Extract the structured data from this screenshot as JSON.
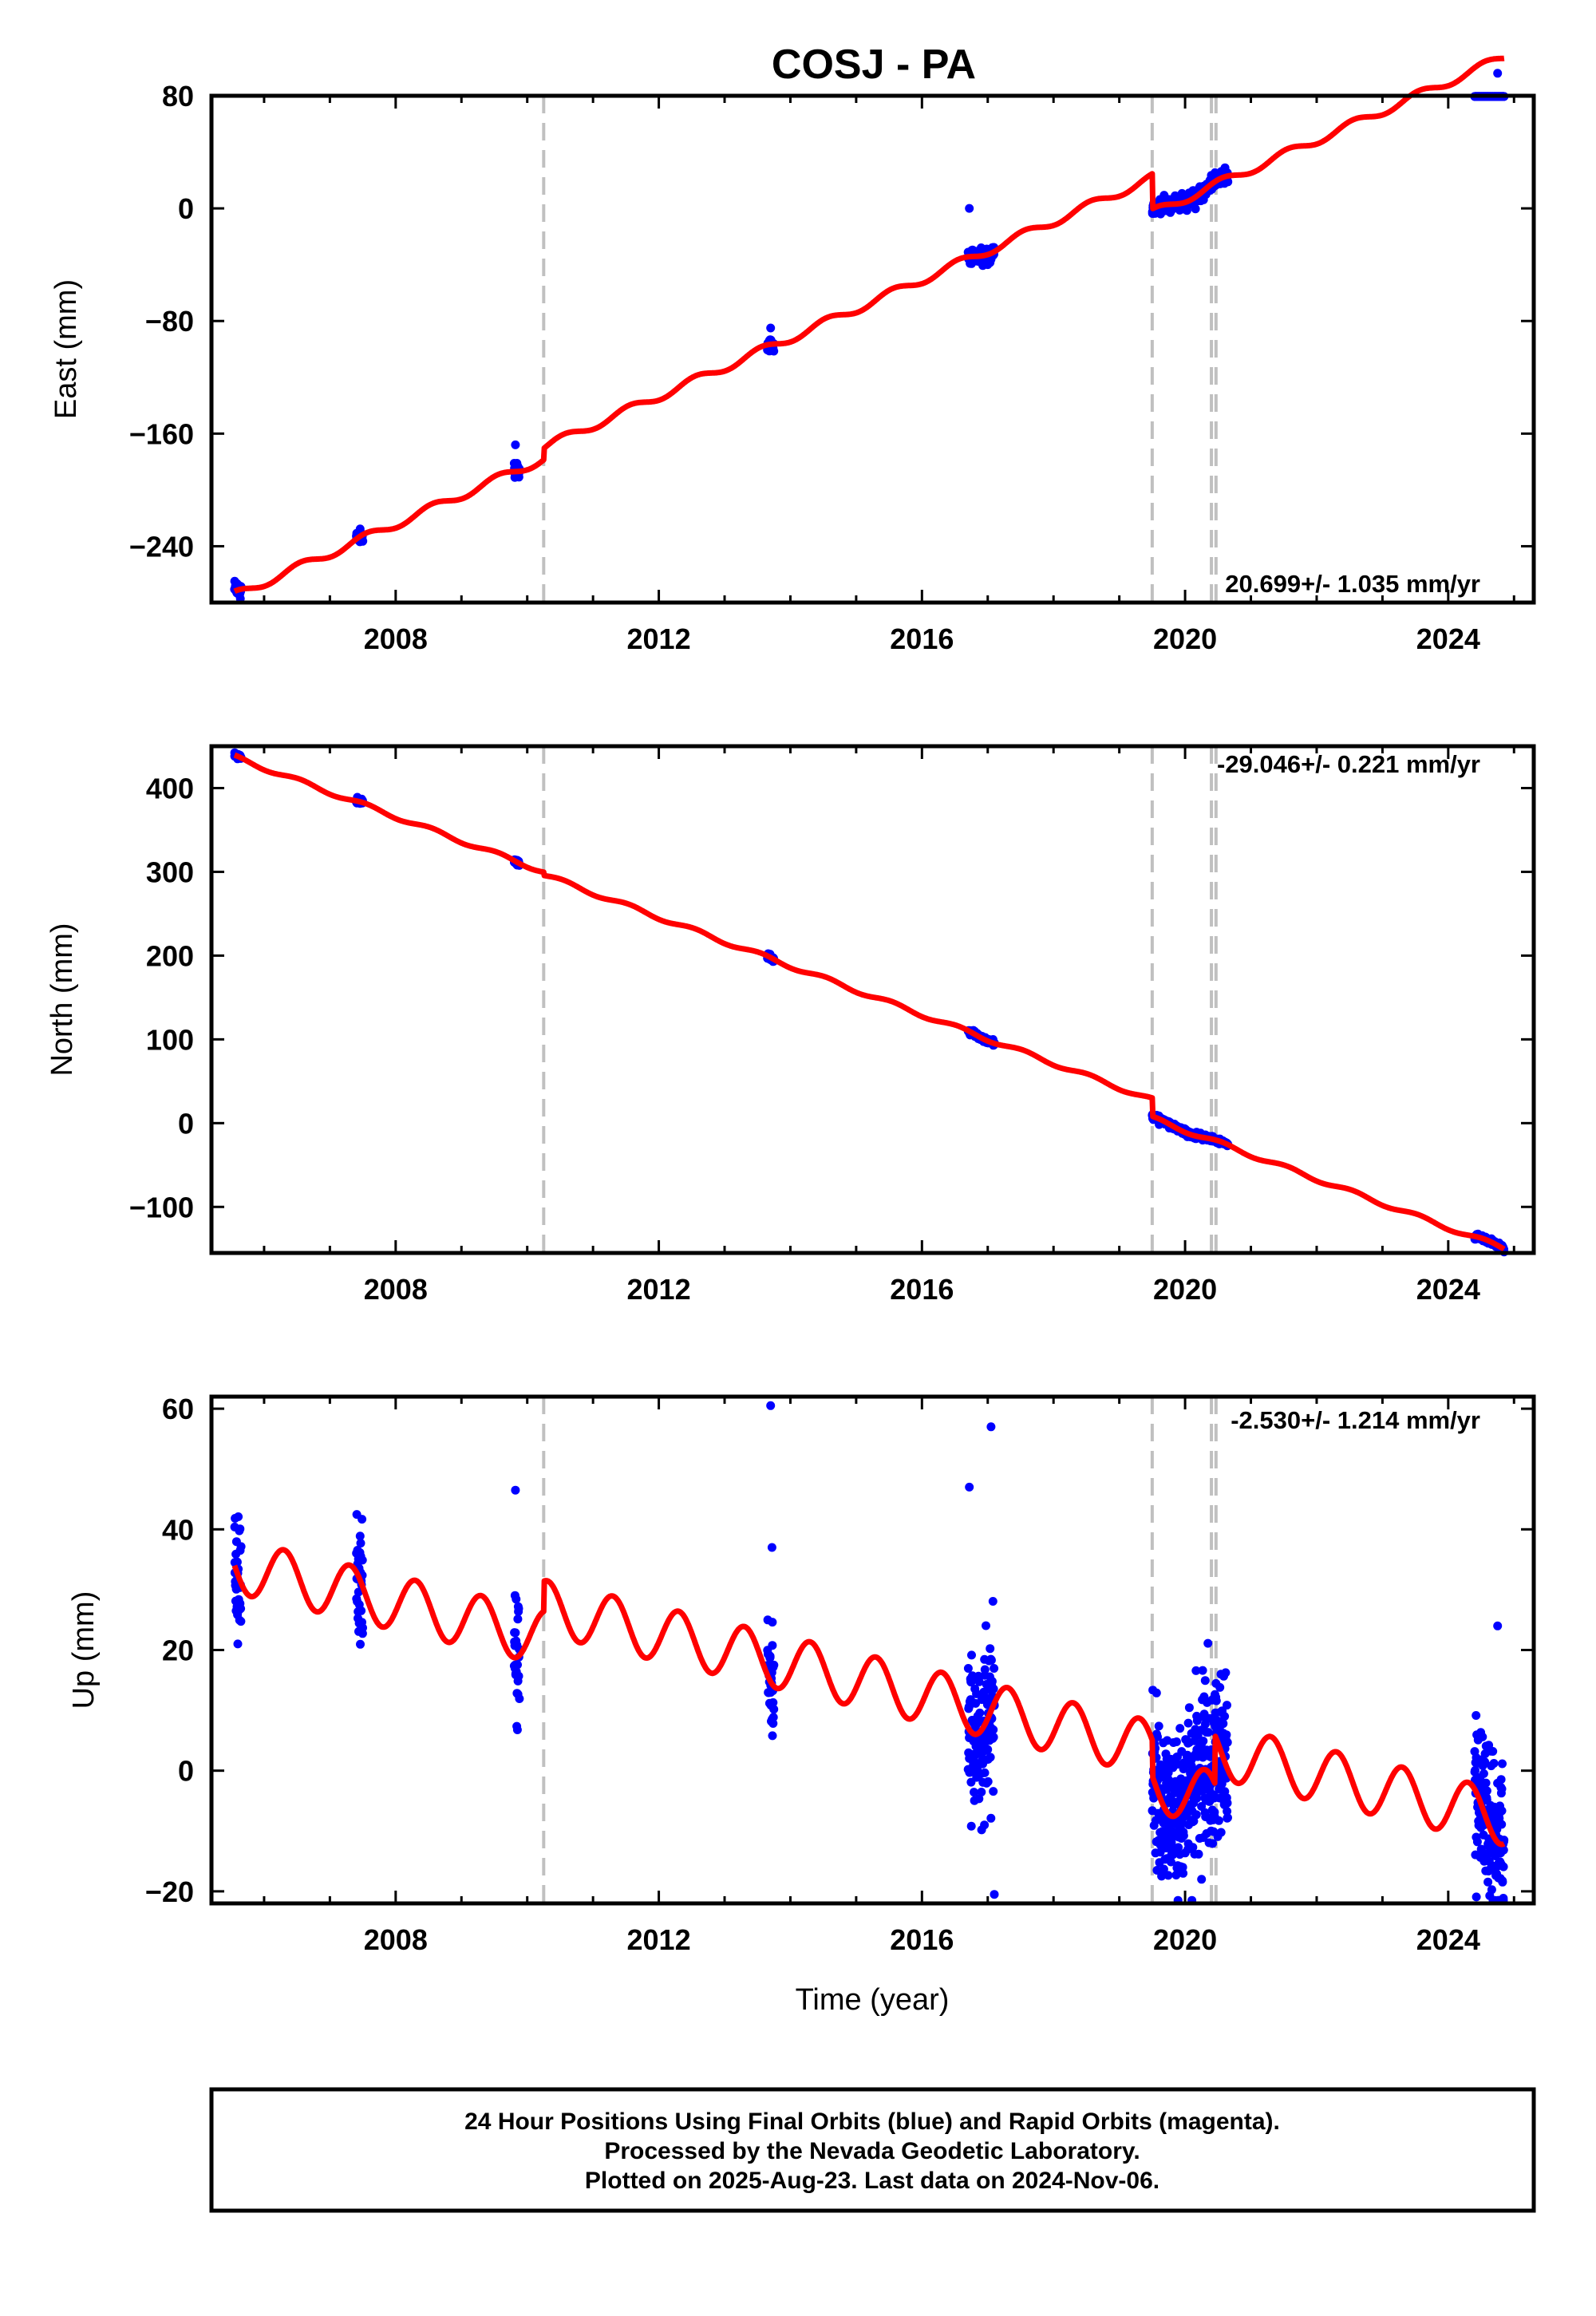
{
  "title": "COSJ - PA",
  "colors": {
    "final_orbits": "#0000ff",
    "model": "#ff0000",
    "break_lines": "#c0c0c0",
    "frame": "#000000"
  },
  "chart_data": [
    {
      "type": "scatter",
      "component": "east",
      "ylabel": "East (mm)",
      "xlim": [
        2005.2,
        2025.3
      ],
      "ylim": [
        -280,
        80
      ],
      "xticks": [
        2008,
        2012,
        2016,
        2020,
        2024
      ],
      "yticks": [
        80,
        0,
        -80,
        -160,
        -240
      ],
      "tick_labels_x": [
        "2008",
        "2012",
        "2016",
        "2020",
        "2024"
      ],
      "tick_labels_y": [
        "80",
        "0",
        "−80",
        "−160",
        "−240"
      ],
      "rate_label": "20.699+/- 1.035 mm/yr",
      "breaks": [
        2010.25,
        2019.5,
        2020.4,
        2020.47
      ],
      "data_segments": [
        [
          2005.55,
          2005.65
        ],
        [
          2007.4,
          2007.5
        ],
        [
          2009.8,
          2009.88
        ],
        [
          2013.65,
          2013.75
        ],
        [
          2016.7,
          2017.1
        ],
        [
          2019.5,
          2020.65
        ],
        [
          2024.4,
          2024.85
        ]
      ],
      "model": {
        "base": -275,
        "t0": 2005.55,
        "rate": 20.7,
        "annual": 3,
        "phase": 0.3,
        "offsets": [
          [
            2010.25,
            8
          ],
          [
            2019.5,
            -25
          ]
        ]
      },
      "scatter": 2.5,
      "outliers": [
        [
          2005.6,
          -272
        ],
        [
          2007.45,
          -234
        ],
        [
          2009.82,
          -168
        ],
        [
          2013.7,
          -85
        ],
        [
          2016.72,
          0
        ],
        [
          2016.9,
          -28
        ],
        [
          2024.75,
          96
        ]
      ]
    },
    {
      "type": "scatter",
      "component": "north",
      "ylabel": "North (mm)",
      "xlim": [
        2005.2,
        2025.3
      ],
      "ylim": [
        -155,
        450
      ],
      "xticks": [
        2008,
        2012,
        2016,
        2020,
        2024
      ],
      "yticks": [
        400,
        300,
        200,
        100,
        0,
        -100
      ],
      "tick_labels_x": [
        "2008",
        "2012",
        "2016",
        "2020",
        "2024"
      ],
      "tick_labels_y": [
        "400",
        "300",
        "200",
        "100",
        "0",
        "−100"
      ],
      "rate_label": "-29.046+/- 0.221 mm/yr",
      "breaks": [
        2010.25,
        2019.5,
        2020.4,
        2020.47
      ],
      "data_segments": [
        [
          2005.55,
          2005.65
        ],
        [
          2007.4,
          2007.5
        ],
        [
          2009.8,
          2009.88
        ],
        [
          2013.65,
          2013.75
        ],
        [
          2016.7,
          2017.1
        ],
        [
          2019.5,
          2020.65
        ],
        [
          2024.4,
          2024.85
        ]
      ],
      "model": {
        "base": 437,
        "t0": 2005.55,
        "rate": -29.05,
        "annual": 2.5,
        "phase": 0.3,
        "offsets": [
          [
            2010.25,
            -4
          ],
          [
            2019.5,
            -22
          ]
        ]
      },
      "scatter": 1.5,
      "outliers": []
    },
    {
      "type": "scatter",
      "component": "up",
      "ylabel": "Up (mm)",
      "xlim": [
        2005.2,
        2025.3
      ],
      "ylim": [
        -22,
        62
      ],
      "xticks": [
        2008,
        2012,
        2016,
        2020,
        2024
      ],
      "yticks": [
        60,
        40,
        20,
        0,
        -20
      ],
      "tick_labels_x": [
        "2008",
        "2012",
        "2016",
        "2020",
        "2024"
      ],
      "tick_labels_y": [
        "60",
        "40",
        "20",
        "0",
        "−20"
      ],
      "rate_label": "-2.530+/- 1.214 mm/yr",
      "xlabel": "Time (year)",
      "breaks": [
        2010.25,
        2019.5,
        2020.4,
        2020.47
      ],
      "data_segments": [
        [
          2005.55,
          2005.65
        ],
        [
          2007.4,
          2007.5
        ],
        [
          2009.8,
          2009.88
        ],
        [
          2013.65,
          2013.75
        ],
        [
          2016.7,
          2017.1
        ],
        [
          2019.5,
          2020.65
        ],
        [
          2024.4,
          2024.85
        ]
      ],
      "model": {
        "base": 34,
        "t0": 2005.55,
        "rate": -2.53,
        "annual": 4.5,
        "phase": 0.05,
        "offsets": [
          [
            2010.25,
            5
          ],
          [
            2019.5,
            -6
          ],
          [
            2020.45,
            8
          ]
        ]
      },
      "scatter": 6,
      "outliers": [
        [
          2005.6,
          21
        ],
        [
          2009.82,
          46.5
        ],
        [
          2013.7,
          60.5
        ],
        [
          2013.72,
          37
        ],
        [
          2016.72,
          47
        ],
        [
          2017.05,
          57
        ],
        [
          2017.1,
          -20.5
        ],
        [
          2016.95,
          -9
        ],
        [
          2020.25,
          -18
        ],
        [
          2024.75,
          24
        ]
      ]
    }
  ],
  "footer": {
    "line1": "24 Hour Positions Using Final Orbits (blue) and Rapid Orbits (magenta).",
    "line2": "Processed by the Nevada Geodetic Laboratory.",
    "line3": "Plotted on 2025-Aug-23. Last data on 2024-Nov-06."
  }
}
